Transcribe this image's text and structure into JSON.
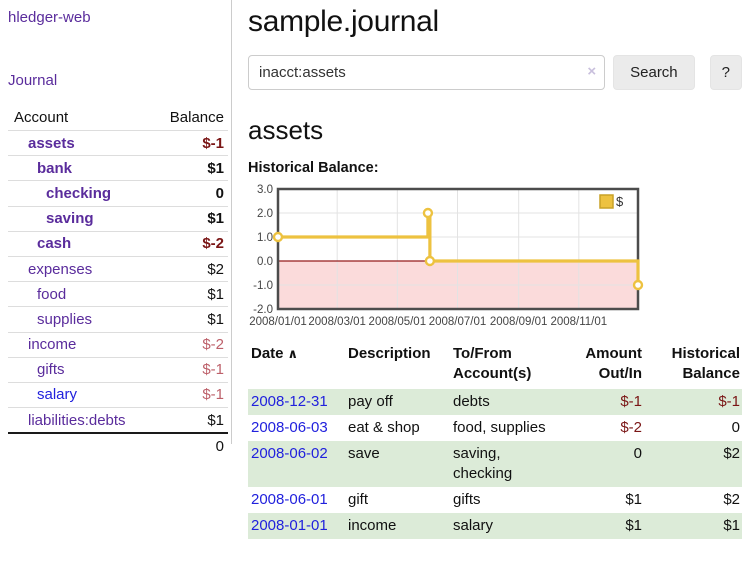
{
  "brand": "hledger-web",
  "nav": {
    "journal": "Journal"
  },
  "sidebar": {
    "headers": {
      "account": "Account",
      "balance": "Balance"
    },
    "rows": [
      {
        "name": "assets",
        "depth": 1,
        "bold": true,
        "balance": "$-1",
        "balance_class": "neg-strong"
      },
      {
        "name": "bank",
        "depth": 2,
        "bold": true,
        "balance": "$1",
        "balance_class": ""
      },
      {
        "name": "checking",
        "depth": 3,
        "bold": true,
        "balance": "0",
        "balance_class": ""
      },
      {
        "name": "saving",
        "depth": 3,
        "bold": true,
        "balance": "$1",
        "balance_class": ""
      },
      {
        "name": "cash",
        "depth": 2,
        "bold": true,
        "balance": "$-2",
        "balance_class": "neg-strong"
      },
      {
        "name": "expenses",
        "depth": 1,
        "bold": false,
        "balance": "$2",
        "balance_class": ""
      },
      {
        "name": "food",
        "depth": 2,
        "bold": false,
        "balance": "$1",
        "balance_class": ""
      },
      {
        "name": "supplies",
        "depth": 2,
        "bold": false,
        "balance": "$1",
        "balance_class": ""
      },
      {
        "name": "income",
        "depth": 1,
        "bold": false,
        "balance": "$-2",
        "balance_class": "neg-dim"
      },
      {
        "name": "gifts",
        "depth": 2,
        "bold": false,
        "balance": "$-1",
        "balance_class": "neg-dim"
      },
      {
        "name": "salary",
        "depth": 2,
        "bold": false,
        "blue": true,
        "balance": "$-1",
        "balance_class": "neg-dim"
      },
      {
        "name": "liabilities:debts",
        "depth": 1,
        "bold": false,
        "balance": "$1",
        "balance_class": ""
      }
    ],
    "total": "0"
  },
  "main": {
    "title": "sample.journal"
  },
  "search": {
    "query": "inacct:assets",
    "clear_icon": "×",
    "search_label": "Search",
    "help_label": "?"
  },
  "account_page": {
    "heading": "assets",
    "chart_heading": "Historical Balance:"
  },
  "chart_data": {
    "type": "line",
    "title": "Historical Balance",
    "step": true,
    "series": [
      {
        "name": "$",
        "color": "#edc240",
        "points": [
          {
            "date": "2008-01-01",
            "day": 1,
            "value": 1
          },
          {
            "date": "2008-06-01",
            "day": 153,
            "value": 2
          },
          {
            "date": "2008-06-03",
            "day": 155,
            "value": 0
          },
          {
            "date": "2008-12-31",
            "day": 366,
            "value": -1
          }
        ]
      }
    ],
    "x_ticks": [
      {
        "label": "2008/01/01",
        "day": 1
      },
      {
        "label": "2008/03/01",
        "day": 61
      },
      {
        "label": "2008/05/01",
        "day": 122
      },
      {
        "label": "2008/07/01",
        "day": 183
      },
      {
        "label": "2008/09/01",
        "day": 245
      },
      {
        "label": "2008/11/01",
        "day": 306
      }
    ],
    "y_ticks": [
      {
        "label": "3.0",
        "value": 3
      },
      {
        "label": "2.0",
        "value": 2
      },
      {
        "label": "1.0",
        "value": 1
      },
      {
        "label": "0.0",
        "value": 0
      },
      {
        "label": "-1.0",
        "value": -1
      },
      {
        "label": "-2.0",
        "value": -2
      }
    ],
    "xlim": [
      1,
      366
    ],
    "ylim": [
      -2,
      3
    ],
    "grid": true,
    "legend": {
      "label": "$",
      "position": "top-right"
    },
    "negative_fill": "#fbdbdb",
    "zero_line_color": "#951c1c",
    "frame_color": "#4c4c4c",
    "grid_color": "#e3e3e3",
    "axis_text_color": "#454545"
  },
  "register": {
    "headers": [
      "Date",
      "Description",
      "To/From Account(s)",
      "Amount Out/In",
      "Historical Balance"
    ],
    "sort_icon": "∧",
    "rows": [
      {
        "date": "2008-12-31",
        "description": "pay off",
        "accounts": "debts",
        "amount": "$-1",
        "balance": "$-1"
      },
      {
        "date": "2008-06-03",
        "description": "eat & shop",
        "accounts": "food, supplies",
        "amount": "$-2",
        "balance": "0"
      },
      {
        "date": "2008-06-02",
        "description": "save",
        "accounts": "saving, checking",
        "amount": "0",
        "balance": "$2"
      },
      {
        "date": "2008-06-01",
        "description": "gift",
        "accounts": "gifts",
        "amount": "$1",
        "balance": "$2"
      },
      {
        "date": "2008-01-01",
        "description": "income",
        "accounts": "salary",
        "amount": "$1",
        "balance": "$1"
      }
    ]
  },
  "colors": {
    "purple_link": "#5a2c9c",
    "blue_link": "#2121dd",
    "neg_strong": "#7a1515",
    "neg_dim": "#bd606a",
    "row_green": "#dcebd8",
    "btn_bg": "#ebebeb",
    "border_light": "#cccccc",
    "text": "#111111"
  }
}
